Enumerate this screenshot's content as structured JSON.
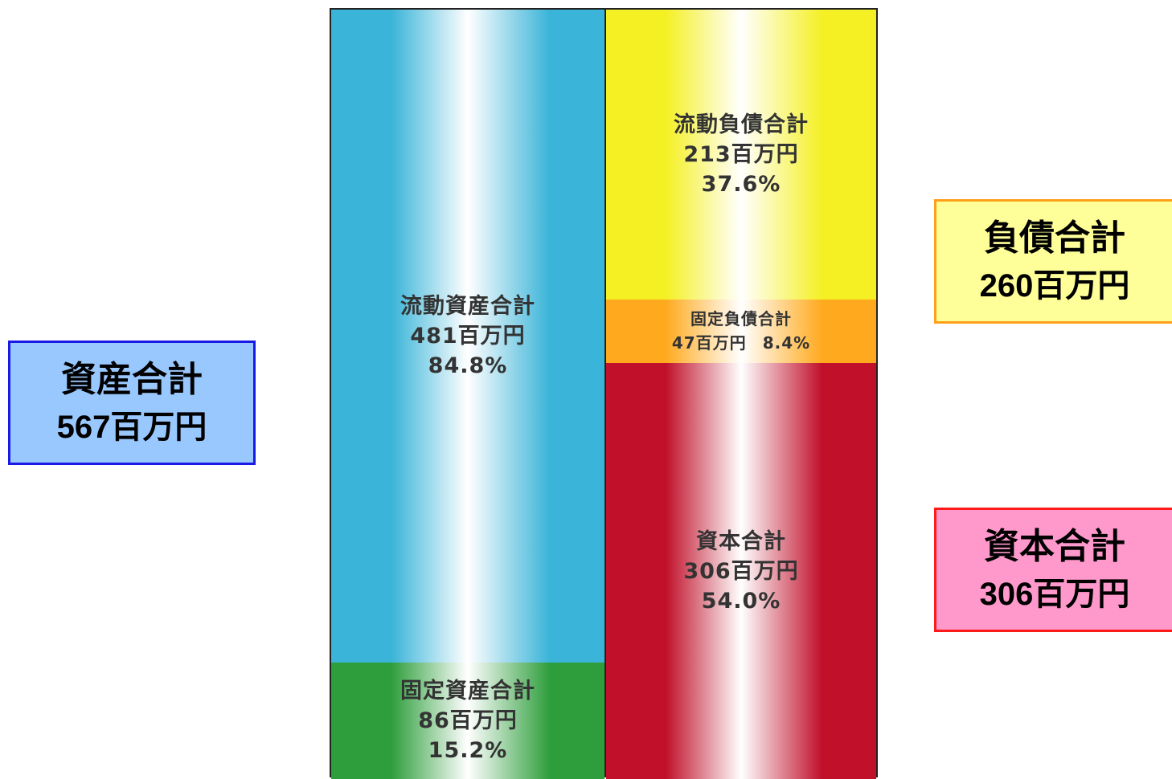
{
  "chart_data": {
    "type": "bar",
    "title": "",
    "unit": "百万円",
    "columns": [
      {
        "name": "資産",
        "segments": [
          {
            "label": "流動資産合計",
            "value": 481,
            "value_text": "481百万円",
            "pct_text": "84.8%",
            "pct": 84.8,
            "color": "#3ab4d8"
          },
          {
            "label": "固定資産合計",
            "value": 86,
            "value_text": "86百万円",
            "pct_text": "15.2%",
            "pct": 15.2,
            "color": "#2e9e3c"
          }
        ]
      },
      {
        "name": "負債・資本",
        "segments": [
          {
            "label": "流動負債合計",
            "value": 213,
            "value_text": "213百万円",
            "pct_text": "37.6%",
            "pct": 37.6,
            "color": "#f4f024"
          },
          {
            "label": "固定負債合計",
            "value": 47,
            "value_text": "47百万円",
            "pct_text": "8.4%",
            "pct": 8.4,
            "color": "#ffaa1e"
          },
          {
            "label": "資本合計",
            "value": 306,
            "value_text": "306百万円",
            "pct_text": "54.0%",
            "pct": 54.0,
            "color": "#c0102a"
          }
        ]
      }
    ]
  },
  "summary": {
    "assets": {
      "label": "資産合計",
      "value_text": "567百万円",
      "value": 567
    },
    "liabilities": {
      "label": "負債合計",
      "value_text": "260百万円",
      "value": 260
    },
    "equity": {
      "label": "資本合計",
      "value_text": "306百万円",
      "value": 306
    }
  },
  "colors": {
    "assets_box_bg": "#99c8ff",
    "assets_box_border": "#1a1ae6",
    "liab_box_bg": "#ffff99",
    "liab_box_border": "#ff9f1a",
    "equity_box_bg": "#ff99cc",
    "equity_box_border": "#ff1a1a"
  }
}
